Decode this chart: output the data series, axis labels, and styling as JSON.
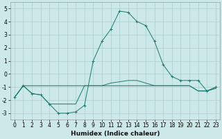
{
  "xlabel": "Humidex (Indice chaleur)",
  "bg_color": "#cce8e8",
  "grid_color": "#aacfcf",
  "line_color": "#1a7a6e",
  "xlim": [
    -0.5,
    23.5
  ],
  "ylim": [
    -3.5,
    5.5
  ],
  "yticks": [
    -3,
    -2,
    -1,
    0,
    1,
    2,
    3,
    4,
    5
  ],
  "xticks": [
    0,
    1,
    2,
    3,
    4,
    5,
    6,
    7,
    8,
    9,
    10,
    11,
    12,
    13,
    14,
    15,
    16,
    17,
    18,
    19,
    20,
    21,
    22,
    23
  ],
  "line_main_x": [
    0,
    1,
    2,
    3,
    4,
    5,
    6,
    7,
    8,
    9,
    10,
    11,
    12,
    13,
    14,
    15,
    16,
    17,
    18,
    19,
    20,
    21,
    22,
    23
  ],
  "line_main_y": [
    -1.8,
    -0.9,
    -1.5,
    -1.6,
    -2.3,
    -3.0,
    -3.0,
    -2.9,
    -2.4,
    1.0,
    2.5,
    3.4,
    4.8,
    4.7,
    4.0,
    3.7,
    2.5,
    0.7,
    -0.2,
    -0.5,
    -0.5,
    -0.5,
    -1.3,
    -1.0
  ],
  "line_flat_x": [
    0,
    1,
    2,
    3,
    4,
    5,
    6,
    7,
    8,
    9,
    10,
    11,
    12,
    13,
    14,
    15,
    16,
    17,
    18,
    19,
    20,
    21,
    22,
    23
  ],
  "line_flat_y": [
    -1.8,
    -0.9,
    -0.9,
    -0.9,
    -0.9,
    -0.9,
    -0.9,
    -0.9,
    -0.9,
    -0.9,
    -0.9,
    -0.9,
    -0.9,
    -0.9,
    -0.9,
    -0.9,
    -0.9,
    -0.9,
    -0.9,
    -0.9,
    -0.9,
    -1.3,
    -1.3,
    -1.1
  ],
  "line_env_x": [
    0,
    1,
    2,
    3,
    4,
    5,
    6,
    7,
    8,
    9,
    10,
    11,
    12,
    13,
    14,
    15,
    16,
    17,
    18,
    19,
    20,
    21,
    22,
    23
  ],
  "line_env_y": [
    -1.8,
    -0.9,
    -1.5,
    -1.6,
    -2.3,
    -2.3,
    -2.3,
    -2.3,
    -0.9,
    -0.9,
    -0.9,
    -0.7,
    -0.6,
    -0.5,
    -0.5,
    -0.7,
    -0.9,
    -0.9,
    -0.9,
    -0.9,
    -0.9,
    -1.3,
    -1.3,
    -1.1
  ],
  "lw": 0.7,
  "marker_size": 2.5,
  "tick_fontsize": 5.5,
  "xlabel_fontsize": 6.5
}
